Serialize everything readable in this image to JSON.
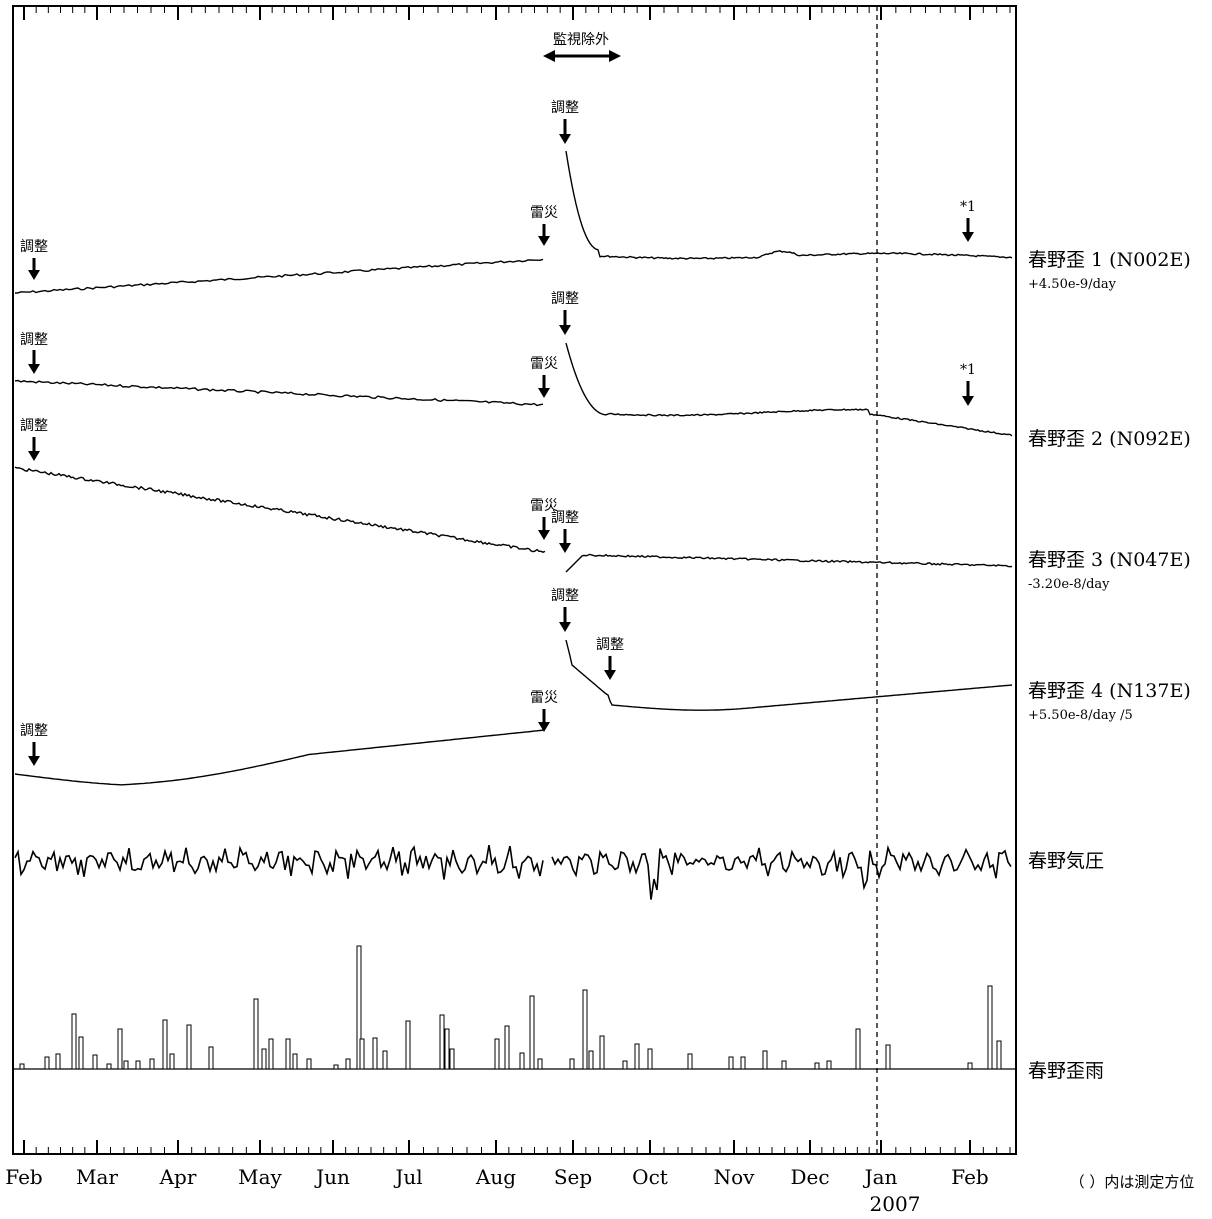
{
  "chart_data": {
    "type": "line",
    "title": "",
    "x_axis": {
      "months": [
        "Feb",
        "Mar",
        "Apr",
        "May",
        "Jun",
        "Jul",
        "Aug",
        "Sep",
        "Oct",
        "Nov",
        "Dec",
        "Jan",
        "Feb"
      ],
      "year_label": "2007",
      "year_break_at": "Jan"
    },
    "note": "（ ）内は測定方位",
    "excluded_period": {
      "label": "監視除外",
      "from": "Aug 21",
      "to": "Sep 20"
    },
    "series": [
      {
        "name": "春野歪 1 (N002E)",
        "rate": "+4.50e-9/day",
        "annotations": [
          {
            "text": "調整",
            "date": "Feb 4"
          },
          {
            "text": "雷災",
            "date": "Aug 24"
          },
          {
            "text": "調整",
            "date": "Sep 1"
          },
          {
            "text": "*1",
            "date": "Feb 4"
          }
        ]
      },
      {
        "name": "春野歪 2 (N092E)",
        "rate": "",
        "annotations": [
          {
            "text": "調整",
            "date": "Feb 4"
          },
          {
            "text": "雷災",
            "date": "Aug 24"
          },
          {
            "text": "調整",
            "date": "Sep 1"
          },
          {
            "text": "*1",
            "date": "Feb 4"
          }
        ]
      },
      {
        "name": "春野歪 3 (N047E)",
        "rate": "-3.20e-8/day",
        "annotations": [
          {
            "text": "調整",
            "date": "Feb 4"
          },
          {
            "text": "雷災",
            "date": "Aug 24"
          },
          {
            "text": "調整",
            "date": "Sep 1"
          }
        ]
      },
      {
        "name": "春野歪 4 (N137E)",
        "rate": "+5.50e-8/day /5",
        "annotations": [
          {
            "text": "調整",
            "date": "Feb 4"
          },
          {
            "text": "雷災",
            "date": "Aug 24"
          },
          {
            "text": "調整",
            "date": "Sep 1"
          },
          {
            "text": "調整",
            "date": "Sep 19"
          }
        ]
      },
      {
        "name": "春野気圧",
        "rate": ""
      },
      {
        "name": "春野歪雨",
        "rate": ""
      }
    ]
  }
}
